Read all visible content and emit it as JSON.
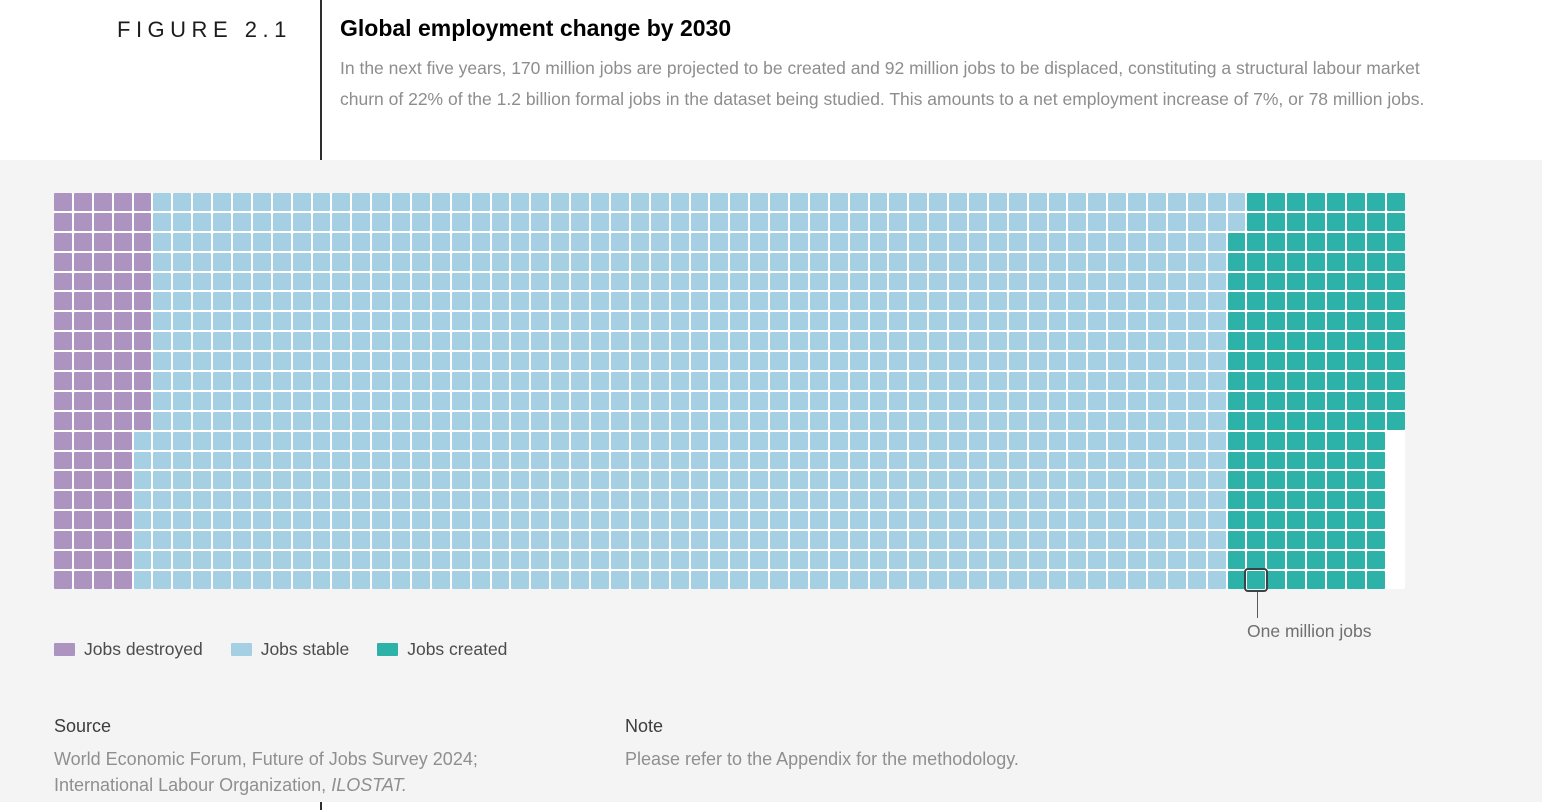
{
  "header": {
    "figure_label": "FIGURE 2.1",
    "title": "Global employment change by 2030",
    "description": "In the next five years, 170 million jobs are projected to be created and 92 million jobs to be displaced, constituting a structural labour market churn of 22% of the 1.2 billion formal jobs in the dataset being studied. This amounts to a net employment increase of 7%, or 78 million jobs."
  },
  "chart_data": {
    "type": "waffle",
    "title": "Global employment change by 2030",
    "unit_label": "One million jobs",
    "unit_note": "1 square = 1 million jobs",
    "rows": 20,
    "max_columns": 68,
    "series": [
      {
        "name": "Jobs destroyed",
        "value_millions": 92,
        "color": "#ad93c0"
      },
      {
        "name": "Jobs stable",
        "value_millions": 1090,
        "color": "#a5d0e4"
      },
      {
        "name": "Jobs created",
        "value_millions": 170,
        "color": "#2db2a9"
      }
    ],
    "row_layout": [
      {
        "row_count": 2,
        "destroyed": 5,
        "stable": 55,
        "created": 8
      },
      {
        "row_count": 10,
        "destroyed": 5,
        "stable": 54,
        "created": 9
      },
      {
        "row_count": 8,
        "destroyed": 4,
        "stable": 55,
        "created": 8
      }
    ],
    "highlight": {
      "row": 20,
      "column": 61,
      "label": "One million jobs"
    },
    "legend_position": "bottom-left",
    "grid": "off"
  },
  "footer": {
    "source_header": "Source",
    "source_line1": "World Economic Forum, Future of Jobs Survey 2024;",
    "source_line2_prefix": "International Labour Organization, ",
    "source_line2_italic": "ILOSTAT.",
    "note_header": "Note",
    "note_text": "Please refer to the Appendix for the methodology."
  }
}
